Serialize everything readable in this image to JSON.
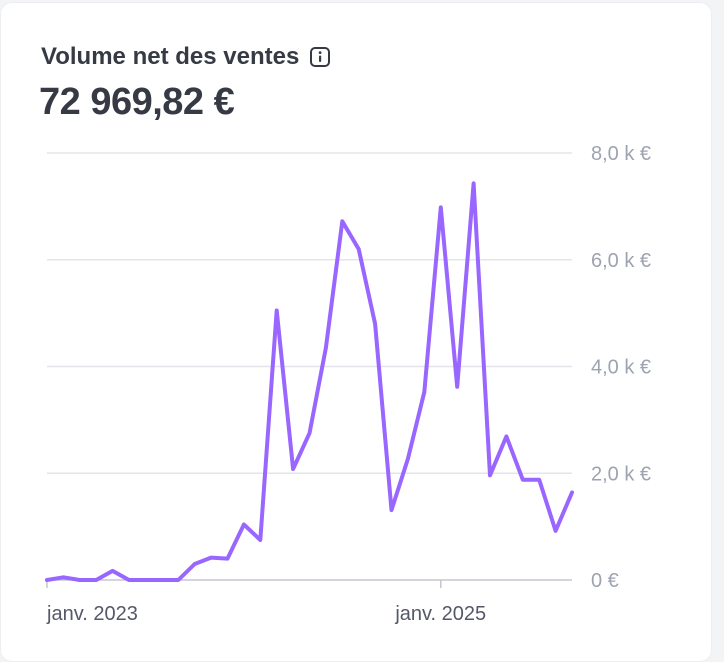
{
  "card": {
    "title": "Volume net des ventes",
    "info_icon": "info-icon",
    "total": "72 969,82 €"
  },
  "colors": {
    "line": "#9966ff",
    "grid": "#e3e5ea",
    "axis": "#c4c7d0"
  },
  "chart_data": {
    "type": "line",
    "title": "",
    "xlabel": "",
    "ylabel": "",
    "ylim": [
      0,
      8000
    ],
    "yticks": [
      0,
      2000,
      4000,
      6000,
      8000
    ],
    "ytick_labels": [
      "0 €",
      "2,0 k €",
      "4,0 k €",
      "6,0 k €",
      "8,0 k €"
    ],
    "xticks": [
      0,
      24
    ],
    "xtick_labels": [
      "janv. 2023",
      "janv. 2025"
    ],
    "grid": true,
    "series": [
      {
        "name": "",
        "x": [
          0,
          1,
          2,
          3,
          4,
          5,
          6,
          7,
          8,
          9,
          10,
          11,
          12,
          13,
          14,
          15,
          16,
          17,
          18,
          19,
          20,
          21,
          22,
          23,
          24,
          25,
          26,
          27,
          28,
          29,
          30,
          31,
          32
        ],
        "values": [
          0,
          50,
          0,
          0,
          170,
          0,
          0,
          0,
          0,
          300,
          420,
          400,
          1040,
          750,
          5050,
          2080,
          2750,
          4350,
          6720,
          6200,
          4800,
          1310,
          2270,
          3520,
          6980,
          3620,
          7430,
          1960,
          2690,
          1880,
          1880,
          920,
          1640
        ]
      }
    ],
    "x_extra": 32.8,
    "y_extra": 2000
  }
}
